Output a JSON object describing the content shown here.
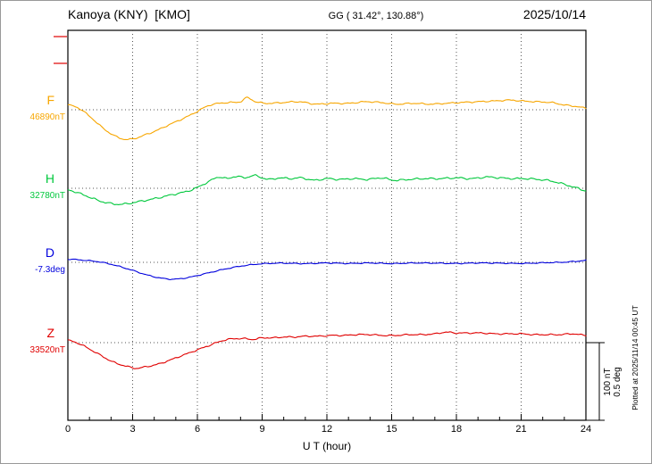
{
  "header": {
    "station": "Kanoya (KNY)  [KMO]",
    "coords": "GG ( 31.42°, 130.88°)",
    "date": "2025/10/14"
  },
  "x_axis": {
    "label": "U T (hour)"
  },
  "right_side": {
    "scale_nt": "100 nT",
    "scale_deg": "0.5 deg",
    "plotted_note": "Plotted at 2025/11/14 00:45 UT"
  },
  "chart_data": {
    "type": "line",
    "title": "Kanoya (KNY) [KMO] magnetogram, 2025/10/14",
    "xlabel": "U T (hour)",
    "x_range": [
      0,
      24
    ],
    "x_ticks": [
      0,
      3,
      6,
      9,
      12,
      15,
      18,
      21,
      24
    ],
    "grid": "dotted vertical at 3h intervals, dotted baseline per component",
    "scale": {
      "nT_per_bar": 100,
      "deg_per_bar": 0.5
    },
    "series": [
      {
        "name": "F",
        "label": "F",
        "unit": "nT",
        "baseline_value": 46890,
        "baseline_label": "46890nT",
        "color": "#f7a600",
        "points": [
          [
            0,
            6
          ],
          [
            0.5,
            2
          ],
          [
            1,
            -8
          ],
          [
            1.5,
            -20
          ],
          [
            2,
            -30
          ],
          [
            2.5,
            -36
          ],
          [
            2.8,
            -37
          ],
          [
            3.2,
            -35
          ],
          [
            3.6,
            -31
          ],
          [
            4,
            -27
          ],
          [
            4.5,
            -21
          ],
          [
            5,
            -15
          ],
          [
            5.5,
            -9
          ],
          [
            6,
            -2
          ],
          [
            6.5,
            5
          ],
          [
            7,
            8
          ],
          [
            7.5,
            9
          ],
          [
            8,
            10
          ],
          [
            8.3,
            15
          ],
          [
            8.7,
            10
          ],
          [
            9.2,
            8
          ],
          [
            10,
            9
          ],
          [
            10.7,
            10
          ],
          [
            11.5,
            7
          ],
          [
            12.2,
            8
          ],
          [
            13,
            8
          ],
          [
            13.8,
            10
          ],
          [
            14.5,
            9
          ],
          [
            15.2,
            7
          ],
          [
            16,
            8
          ],
          [
            16.8,
            7
          ],
          [
            17.5,
            8
          ],
          [
            18.2,
            9
          ],
          [
            19,
            10
          ],
          [
            19.8,
            11
          ],
          [
            20.5,
            12
          ],
          [
            21,
            11
          ],
          [
            21.7,
            10
          ],
          [
            22.4,
            9
          ],
          [
            23,
            6
          ],
          [
            23.6,
            4
          ],
          [
            24,
            2
          ]
        ]
      },
      {
        "name": "H",
        "label": "H",
        "unit": "nT",
        "baseline_value": 32780,
        "baseline_label": "32780nT",
        "color": "#00c83c",
        "points": [
          [
            0,
            -2
          ],
          [
            0.5,
            -6
          ],
          [
            1,
            -11
          ],
          [
            1.5,
            -16
          ],
          [
            2,
            -19
          ],
          [
            2.4,
            -20
          ],
          [
            2.8,
            -19
          ],
          [
            3.2,
            -17
          ],
          [
            3.6,
            -15
          ],
          [
            4,
            -13
          ],
          [
            4.5,
            -10
          ],
          [
            5,
            -7
          ],
          [
            5.5,
            -4
          ],
          [
            6,
            1
          ],
          [
            6.5,
            8
          ],
          [
            7,
            14
          ],
          [
            7.4,
            12
          ],
          [
            7.8,
            15
          ],
          [
            8.2,
            13
          ],
          [
            8.6,
            16
          ],
          [
            9,
            13
          ],
          [
            9.4,
            11
          ],
          [
            9.8,
            13
          ],
          [
            10.3,
            12
          ],
          [
            10.8,
            13
          ],
          [
            11.4,
            10
          ],
          [
            12,
            12
          ],
          [
            12.6,
            11
          ],
          [
            13.2,
            12
          ],
          [
            13.9,
            11
          ],
          [
            14.5,
            13
          ],
          [
            15.1,
            10
          ],
          [
            15.8,
            11
          ],
          [
            16.5,
            12
          ],
          [
            17.2,
            12
          ],
          [
            18,
            13
          ],
          [
            18.7,
            12
          ],
          [
            19.4,
            14
          ],
          [
            20,
            13
          ],
          [
            20.6,
            12
          ],
          [
            21.2,
            12
          ],
          [
            21.8,
            11
          ],
          [
            22.4,
            9
          ],
          [
            23,
            5
          ],
          [
            23.5,
            1
          ],
          [
            24,
            -3
          ]
        ]
      },
      {
        "name": "D",
        "label": "D",
        "unit": "deg",
        "baseline_value": -7.3,
        "baseline_label": "-7.3deg",
        "color": "#0000dd",
        "points": [
          [
            0,
            0.02
          ],
          [
            0.5,
            0.016
          ],
          [
            1,
            0.01
          ],
          [
            1.5,
            0.002
          ],
          [
            2,
            -0.012
          ],
          [
            2.5,
            -0.03
          ],
          [
            3,
            -0.05
          ],
          [
            3.5,
            -0.072
          ],
          [
            4,
            -0.09
          ],
          [
            4.4,
            -0.1
          ],
          [
            4.8,
            -0.105
          ],
          [
            5.2,
            -0.102
          ],
          [
            5.6,
            -0.094
          ],
          [
            6,
            -0.082
          ],
          [
            6.5,
            -0.066
          ],
          [
            7,
            -0.05
          ],
          [
            7.5,
            -0.036
          ],
          [
            8,
            -0.024
          ],
          [
            8.5,
            -0.015
          ],
          [
            9,
            -0.009
          ],
          [
            9.5,
            -0.006
          ],
          [
            10,
            -0.005
          ],
          [
            11,
            -0.008
          ],
          [
            12,
            -0.004
          ],
          [
            13,
            -0.007
          ],
          [
            14,
            -0.004
          ],
          [
            15,
            -0.008
          ],
          [
            16,
            -0.004
          ],
          [
            17,
            -0.005
          ],
          [
            18,
            -0.007
          ],
          [
            19,
            -0.004
          ],
          [
            20,
            -0.005
          ],
          [
            21,
            -0.007
          ],
          [
            22,
            -0.003
          ],
          [
            23,
            0.001
          ],
          [
            23.5,
            0.006
          ],
          [
            24,
            0.012
          ]
        ]
      },
      {
        "name": "Z",
        "label": "Z",
        "unit": "nT",
        "baseline_value": 33520,
        "baseline_label": "33520nT",
        "color": "#e00000",
        "points": [
          [
            0,
            3
          ],
          [
            0.4,
            0
          ],
          [
            0.8,
            -5
          ],
          [
            1.2,
            -11
          ],
          [
            1.6,
            -17
          ],
          [
            2,
            -23
          ],
          [
            2.4,
            -27
          ],
          [
            2.8,
            -30
          ],
          [
            3.2,
            -32
          ],
          [
            3.6,
            -30
          ],
          [
            4,
            -28
          ],
          [
            4.5,
            -24
          ],
          [
            5,
            -19
          ],
          [
            5.5,
            -14
          ],
          [
            6,
            -9
          ],
          [
            6.5,
            -4
          ],
          [
            7,
            1
          ],
          [
            7.4,
            4
          ],
          [
            7.8,
            5
          ],
          [
            8.2,
            5
          ],
          [
            8.6,
            4
          ],
          [
            9,
            6
          ],
          [
            9.5,
            6
          ],
          [
            10,
            7
          ],
          [
            10.5,
            7
          ],
          [
            11,
            8
          ],
          [
            11.6,
            8
          ],
          [
            12.2,
            9
          ],
          [
            12.8,
            9
          ],
          [
            13.4,
            10
          ],
          [
            14,
            10
          ],
          [
            14.6,
            9
          ],
          [
            15.2,
            9
          ],
          [
            15.8,
            10
          ],
          [
            16.4,
            10
          ],
          [
            17,
            11
          ],
          [
            17.5,
            13
          ],
          [
            18,
            12
          ],
          [
            18.6,
            12
          ],
          [
            19.2,
            12
          ],
          [
            19.8,
            11
          ],
          [
            20.4,
            11
          ],
          [
            21,
            11
          ],
          [
            21.6,
            10
          ],
          [
            22.2,
            10
          ],
          [
            22.8,
            10
          ],
          [
            23.4,
            11
          ],
          [
            24,
            9
          ]
        ]
      }
    ]
  }
}
